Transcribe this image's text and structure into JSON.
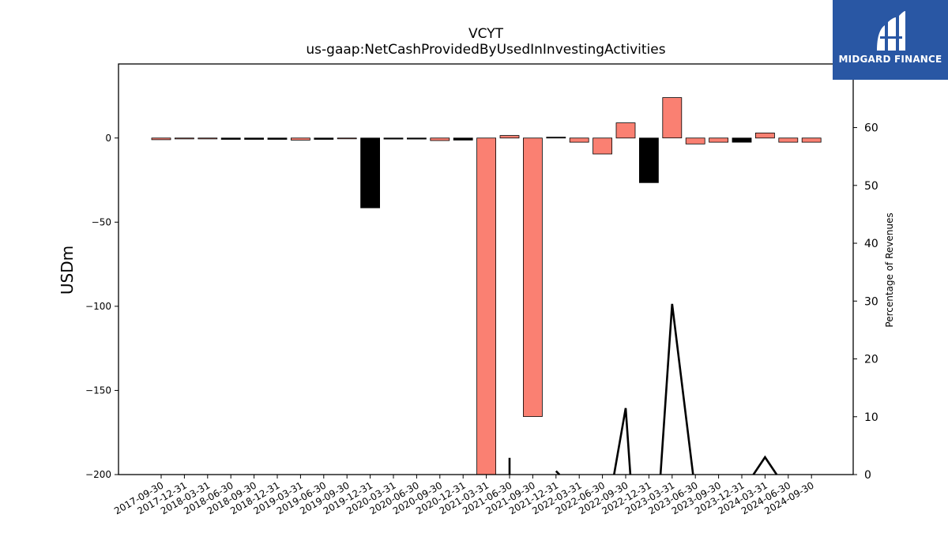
{
  "chart_data": {
    "type": "bar",
    "title": "VCYT",
    "subtitle": "us-gaap:NetCashProvidedByUsedInInvestingActivities",
    "ylabel": "USDm",
    "y2label": "Percentage of Revenues",
    "ylim": [
      -200,
      44
    ],
    "y2lim": [
      0,
      71
    ],
    "yticks": [
      0,
      -50,
      -100,
      -150,
      -200
    ],
    "y2ticks": [
      0,
      10,
      20,
      30,
      40,
      50,
      60
    ],
    "ytick_labels": [
      "0",
      "−50",
      "−100",
      "−150",
      "−200"
    ],
    "y2tick_labels": [
      "0",
      "10",
      "20",
      "30",
      "40",
      "50",
      "60"
    ],
    "categories": [
      "2017-09-30",
      "2017-12-31",
      "2018-03-31",
      "2018-06-30",
      "2018-09-30",
      "2018-12-31",
      "2019-03-31",
      "2019-06-30",
      "2019-09-30",
      "2019-12-31",
      "2020-03-31",
      "2020-06-30",
      "2020-09-30",
      "2020-12-31",
      "2021-03-31",
      "2021-06-30",
      "2021-09-30",
      "2021-12-31",
      "2022-03-31",
      "2022-06-30",
      "2022-09-30",
      "2022-12-31",
      "2023-03-31",
      "2023-06-30",
      "2023-09-30",
      "2023-12-31",
      "2024-03-31",
      "2024-06-30",
      "2024-09-30"
    ],
    "series": [
      {
        "type": "bar",
        "values": [
          -1.0,
          -0.5,
          -0.5,
          -0.8,
          -0.8,
          -0.8,
          -1.2,
          -0.8,
          -0.3,
          -41.5,
          -0.6,
          -0.6,
          -1.5,
          -1.2,
          -210,
          1.5,
          -165.5,
          0.5,
          -2.5,
          -9.5,
          9.0,
          -26.5,
          24.0,
          -3.5,
          -2.5,
          -2.5,
          3.0,
          -2.5,
          -2.5
        ],
        "colors": [
          "salmon",
          "salmon",
          "salmon",
          "black",
          "black",
          "black",
          "salmon",
          "black",
          "salmon",
          "black",
          "black",
          "black",
          "salmon",
          "black",
          "salmon",
          "salmon",
          "salmon",
          "black",
          "salmon",
          "salmon",
          "salmon",
          "black",
          "salmon",
          "salmon",
          "salmon",
          "black",
          "salmon",
          "salmon",
          "salmon"
        ]
      },
      {
        "type": "line",
        "axis": "right",
        "segments": [
          [
            [
              15,
              2.9
            ],
            [
              15,
              0
            ]
          ],
          [
            [
              17,
              0.6
            ],
            [
              17.15,
              0
            ]
          ],
          [
            [
              19.5,
              0
            ],
            [
              20,
              11.5
            ],
            [
              20.2,
              0
            ]
          ],
          [
            [
              21.5,
              0
            ],
            [
              22,
              29.5
            ],
            [
              22.9,
              0
            ]
          ],
          [
            [
              25.5,
              0
            ],
            [
              26,
              3.0
            ],
            [
              26.5,
              0
            ]
          ]
        ]
      }
    ],
    "colors": {
      "salmon": "#fa8072",
      "black": "#000000"
    },
    "legend": "none",
    "grid": false
  },
  "logo": {
    "text": "MIDGARD FINANCE",
    "bg": "#2957a4"
  }
}
